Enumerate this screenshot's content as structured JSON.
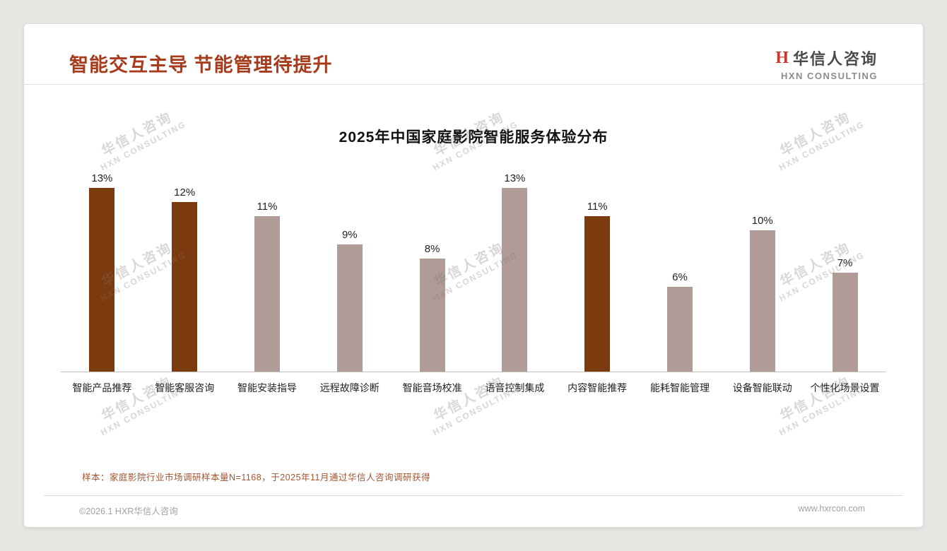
{
  "page": {
    "title": "智能交互主导 节能管理待提升",
    "logo": {
      "mark": "H",
      "cn": "华信人咨询",
      "en": "HXN CONSULTING"
    },
    "watermark": {
      "cn": "华信人咨询",
      "en": "HXN CONSULTING"
    },
    "note": "样本：家庭影院行业市场调研样本量N=1168，于2025年11月通过华信人咨询调研获得",
    "footer_left": "©2026.1 HXR华信人咨询",
    "footer_right": "www.hxrcon.com"
  },
  "chart_data": {
    "type": "bar",
    "title": "2025年中国家庭影院智能服务体验分布",
    "categories": [
      "智能产品推荐",
      "智能客服咨询",
      "智能安装指导",
      "远程故障诊断",
      "智能音场校准",
      "语音控制集成",
      "内容智能推荐",
      "能耗智能管理",
      "设备智能联动",
      "个性化场景设置"
    ],
    "values": [
      13,
      12,
      11,
      9,
      8,
      13,
      11,
      6,
      10,
      7
    ],
    "data_labels": [
      "13%",
      "12%",
      "11%",
      "9%",
      "8%",
      "13%",
      "11%",
      "6%",
      "10%",
      "7%"
    ],
    "highlight_indexes": [
      0,
      1,
      6
    ],
    "colors": {
      "highlight": "#7c3a0f",
      "normal": "#b09b96"
    },
    "ylim": [
      0,
      14
    ],
    "unit": "%",
    "grid": false,
    "legend": "none"
  }
}
